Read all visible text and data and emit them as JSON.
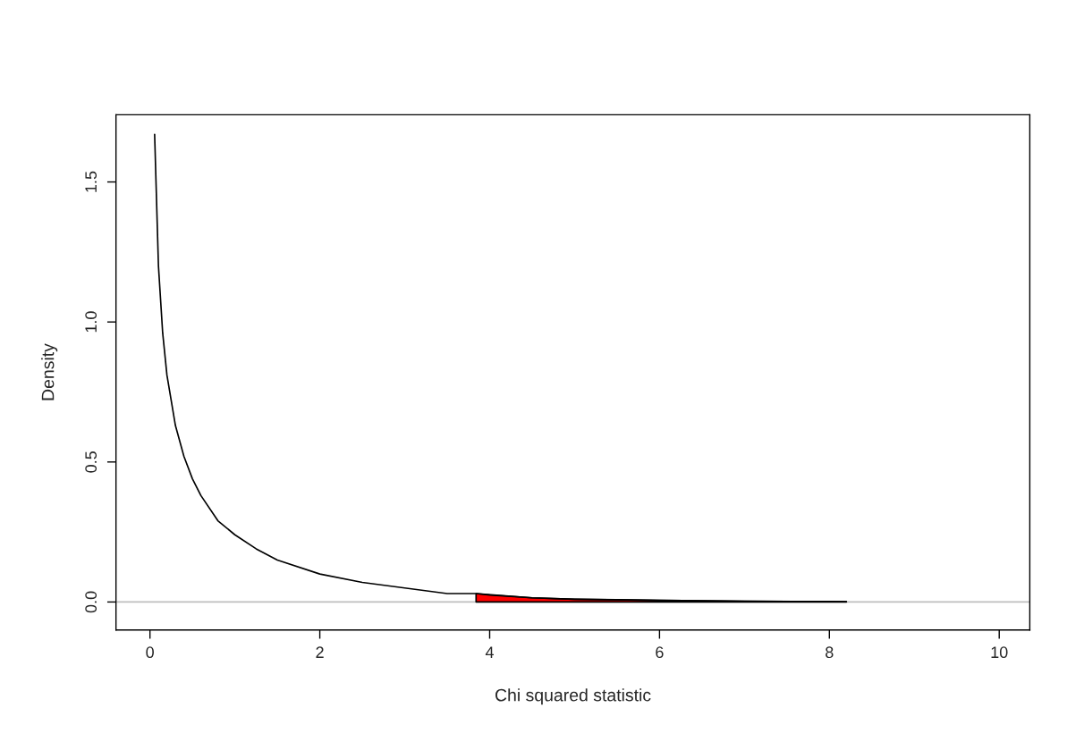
{
  "chart_data": {
    "type": "line",
    "xlabel": "Chi squared statistic",
    "ylabel": "Density",
    "xlim": [
      -0.4,
      10.36
    ],
    "ylim": [
      -0.1,
      1.74
    ],
    "xticks": [
      0,
      2,
      4,
      6,
      8,
      10
    ],
    "yticks": [
      {
        "value": 0,
        "label": "0.0"
      },
      0.5,
      {
        "value": 1,
        "label": "1.0"
      },
      1.5
    ],
    "grid": false,
    "legend": false,
    "series": [
      {
        "type": "area",
        "color": "#ff0000",
        "x": [
          3.84,
          4.0,
          4.5,
          5.0,
          5.5,
          6.0,
          6.5,
          7.0,
          7.5,
          8.0,
          8.2
        ],
        "values": [
          0.03,
          0.025,
          0.015,
          0.01,
          0.008,
          0.006,
          0.004,
          0.003,
          0.002,
          0.002,
          0.001
        ]
      },
      {
        "color": "#000000",
        "x": [
          0.055,
          0.1,
          0.15,
          0.2,
          0.3,
          0.4,
          0.5,
          0.6,
          0.8,
          1.0,
          1.25,
          1.5,
          2.0,
          2.5,
          3.0,
          3.5,
          3.84,
          4.5,
          5.0,
          6.0,
          7.0,
          8.2
        ],
        "values": [
          1.67,
          1.2,
          0.96,
          0.81,
          0.63,
          0.52,
          0.44,
          0.38,
          0.29,
          0.24,
          0.19,
          0.15,
          0.1,
          0.07,
          0.05,
          0.03,
          0.03,
          0.015,
          0.01,
          0.006,
          0.003,
          0.001
        ]
      }
    ],
    "ref_lines": [
      {
        "axis": "y",
        "value": 0,
        "color": "#bebebe"
      }
    ]
  }
}
